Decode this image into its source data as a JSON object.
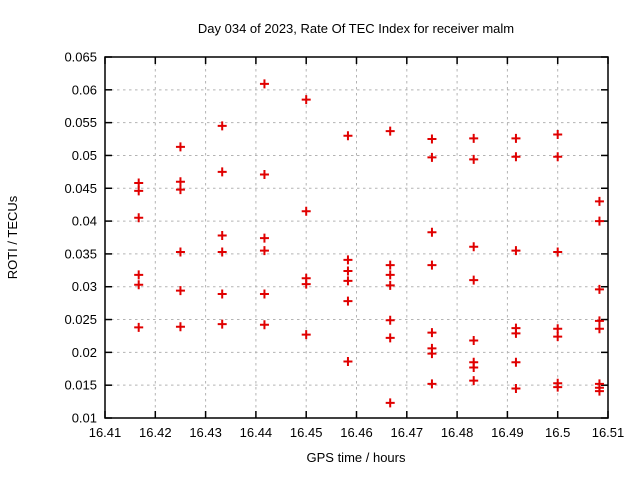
{
  "chart_data": {
    "type": "scatter",
    "title": "Day 034 of 2023, Rate Of TEC Index for receiver malm",
    "xlabel": "GPS time / hours",
    "ylabel": "ROTI / TECUs",
    "xlim": [
      16.41,
      16.51
    ],
    "ylim": [
      0.01,
      0.065
    ],
    "xticks": [
      16.41,
      16.42,
      16.43,
      16.44,
      16.45,
      16.46,
      16.47,
      16.48,
      16.49,
      16.5,
      16.51
    ],
    "xtick_labels": [
      "16.41",
      "16.42",
      "16.43",
      "16.44",
      "16.45",
      "16.46",
      "16.47",
      "16.48",
      "16.49",
      "16.5",
      "16.51"
    ],
    "yticks": [
      0.01,
      0.015,
      0.02,
      0.025,
      0.03,
      0.035,
      0.04,
      0.045,
      0.05,
      0.055,
      0.06,
      0.065
    ],
    "ytick_labels": [
      "0.01",
      "0.015",
      "0.02",
      "0.025",
      "0.03",
      "0.035",
      "0.04",
      "0.045",
      "0.05",
      "0.055",
      "0.06",
      "0.065"
    ],
    "grid": true,
    "legend": "none",
    "marker": "plus",
    "marker_color": "#e00000",
    "grid_color": "#b3b3b3",
    "border_color": "#000000",
    "series": [
      {
        "name": "ROTI",
        "points": [
          [
            16.4167,
            0.0458
          ],
          [
            16.4167,
            0.0446
          ],
          [
            16.4167,
            0.0405
          ],
          [
            16.4167,
            0.0318
          ],
          [
            16.4167,
            0.0303
          ],
          [
            16.4167,
            0.0238
          ],
          [
            16.425,
            0.0513
          ],
          [
            16.425,
            0.046
          ],
          [
            16.425,
            0.0448
          ],
          [
            16.425,
            0.0353
          ],
          [
            16.425,
            0.0294
          ],
          [
            16.425,
            0.0239
          ],
          [
            16.4333,
            0.0545
          ],
          [
            16.4333,
            0.0475
          ],
          [
            16.4333,
            0.0378
          ],
          [
            16.4333,
            0.0353
          ],
          [
            16.4333,
            0.0289
          ],
          [
            16.4333,
            0.0243
          ],
          [
            16.4417,
            0.0609
          ],
          [
            16.4417,
            0.0471
          ],
          [
            16.4417,
            0.0374
          ],
          [
            16.4417,
            0.0355
          ],
          [
            16.4417,
            0.0289
          ],
          [
            16.4417,
            0.0242
          ],
          [
            16.45,
            0.0585
          ],
          [
            16.45,
            0.0415
          ],
          [
            16.45,
            0.0313
          ],
          [
            16.45,
            0.0304
          ],
          [
            16.45,
            0.0227
          ],
          [
            16.4583,
            0.053
          ],
          [
            16.4583,
            0.0341
          ],
          [
            16.4583,
            0.0324
          ],
          [
            16.4583,
            0.0309
          ],
          [
            16.4583,
            0.0278
          ],
          [
            16.4583,
            0.0186
          ],
          [
            16.4667,
            0.0537
          ],
          [
            16.4667,
            0.0333
          ],
          [
            16.4667,
            0.0318
          ],
          [
            16.4667,
            0.0302
          ],
          [
            16.4667,
            0.0249
          ],
          [
            16.4667,
            0.0222
          ],
          [
            16.4667,
            0.0123
          ],
          [
            16.475,
            0.0525
          ],
          [
            16.475,
            0.0497
          ],
          [
            16.475,
            0.0383
          ],
          [
            16.475,
            0.0333
          ],
          [
            16.475,
            0.023
          ],
          [
            16.475,
            0.0206
          ],
          [
            16.475,
            0.0198
          ],
          [
            16.475,
            0.0152
          ],
          [
            16.4833,
            0.0526
          ],
          [
            16.4833,
            0.0494
          ],
          [
            16.4833,
            0.0361
          ],
          [
            16.4833,
            0.031
          ],
          [
            16.4833,
            0.0218
          ],
          [
            16.4833,
            0.0185
          ],
          [
            16.4833,
            0.0177
          ],
          [
            16.4833,
            0.0157
          ],
          [
            16.4917,
            0.0526
          ],
          [
            16.4917,
            0.0498
          ],
          [
            16.4917,
            0.0355
          ],
          [
            16.4917,
            0.0237
          ],
          [
            16.4917,
            0.0229
          ],
          [
            16.4917,
            0.0185
          ],
          [
            16.4917,
            0.0145
          ],
          [
            16.5,
            0.0532
          ],
          [
            16.5,
            0.0498
          ],
          [
            16.5,
            0.0353
          ],
          [
            16.5,
            0.0236
          ],
          [
            16.5,
            0.0224
          ],
          [
            16.5,
            0.0153
          ],
          [
            16.5,
            0.0147
          ],
          [
            16.5083,
            0.043
          ],
          [
            16.5083,
            0.04
          ],
          [
            16.5083,
            0.0296
          ],
          [
            16.5083,
            0.0248
          ],
          [
            16.5083,
            0.0236
          ],
          [
            16.5083,
            0.0152
          ],
          [
            16.5083,
            0.0146
          ],
          [
            16.5083,
            0.0141
          ]
        ]
      }
    ]
  }
}
